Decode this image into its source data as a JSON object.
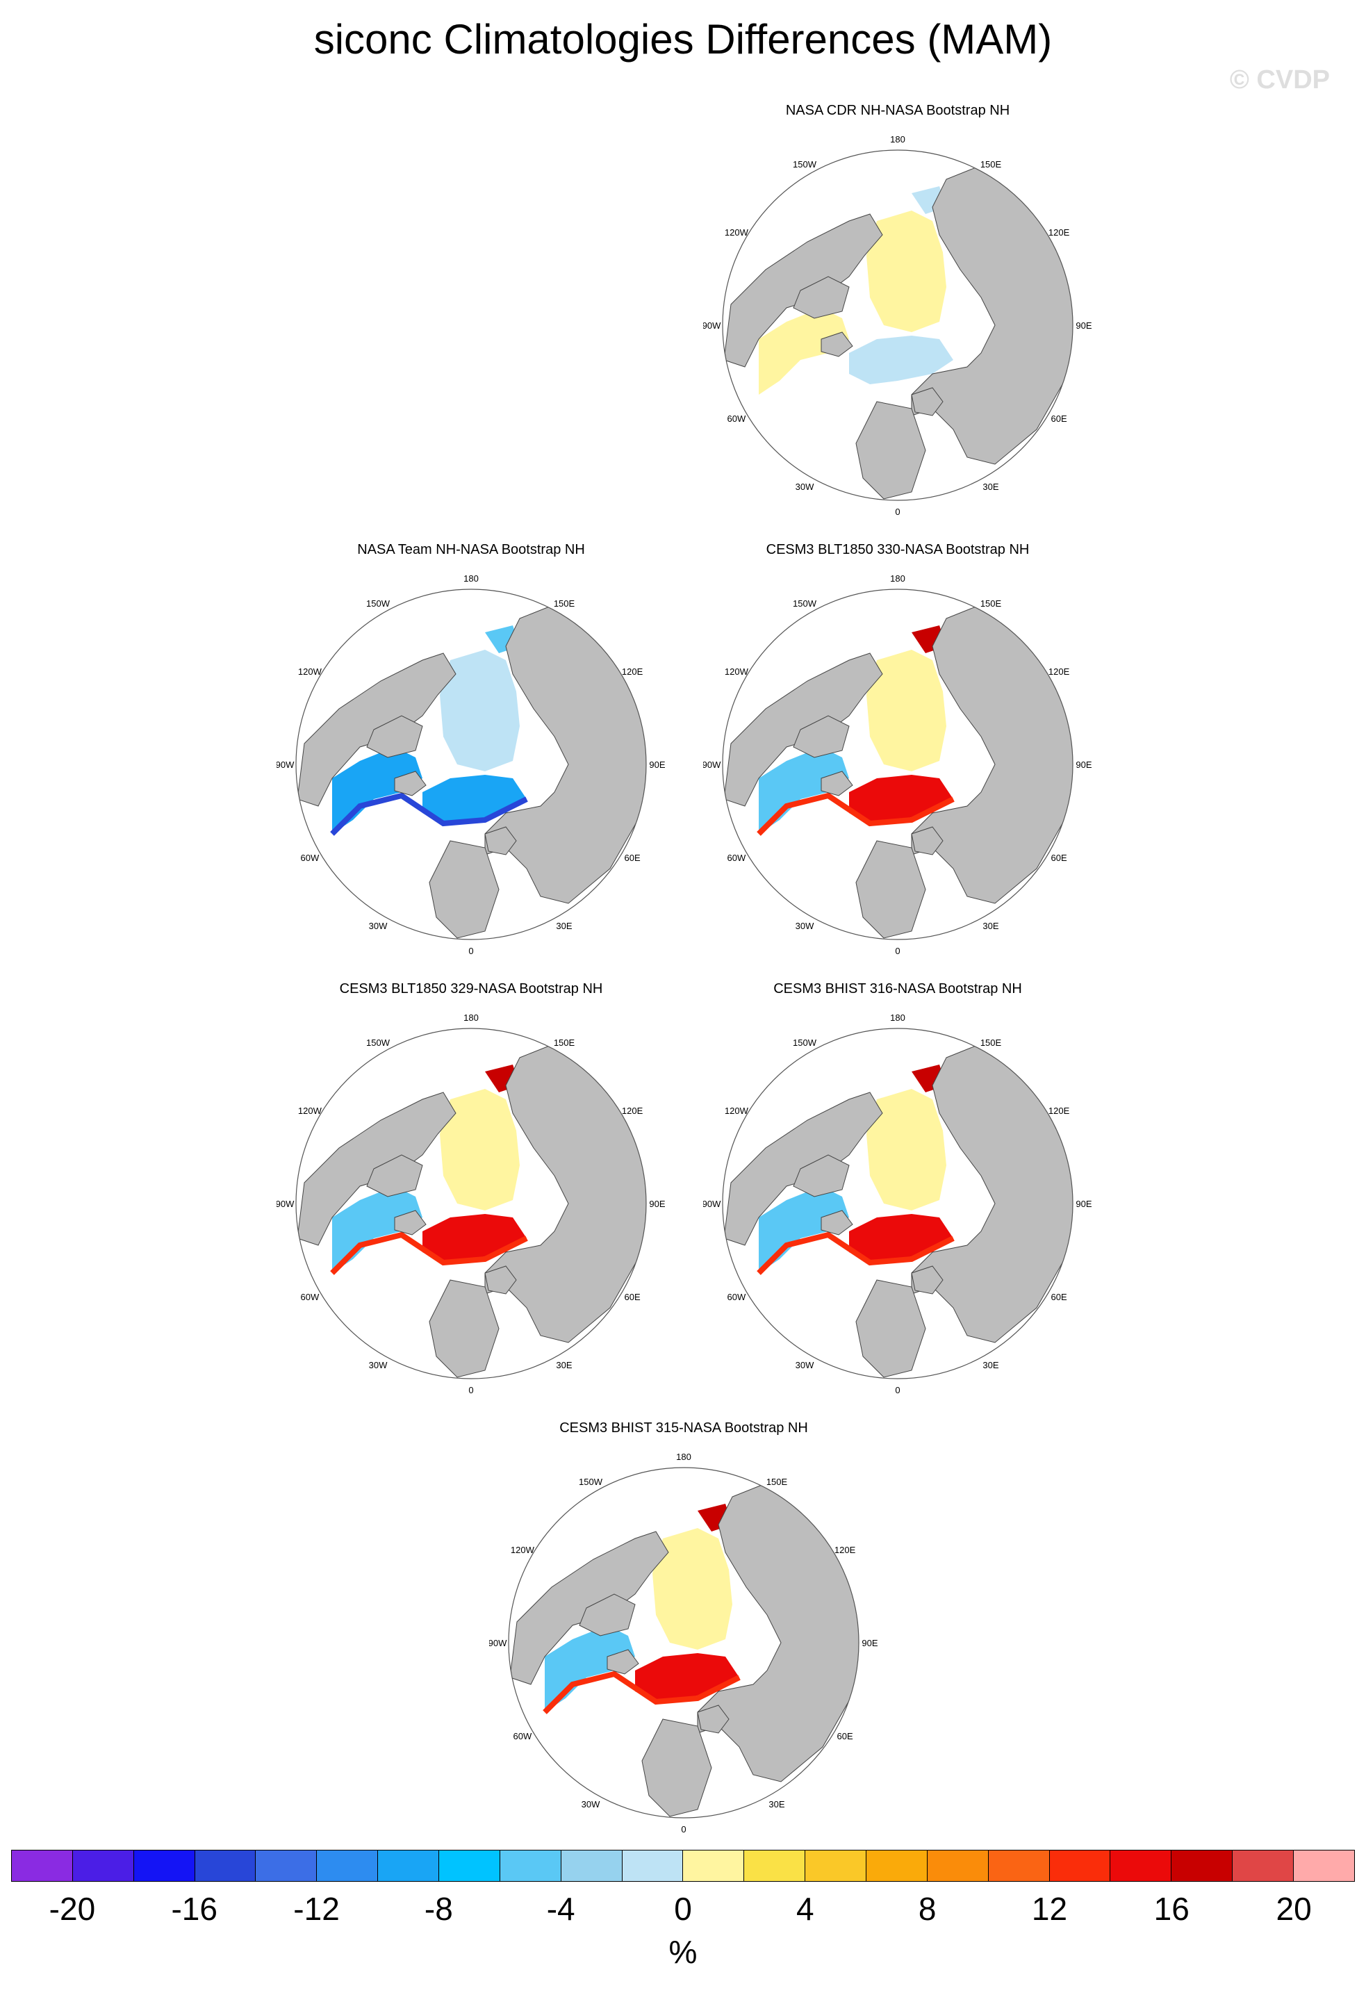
{
  "title": "siconc Climatologies Differences (MAM)",
  "watermark": "© CVDP",
  "panels": [
    {
      "title": "NASA CDR NH-NASA Bootstrap NH",
      "variant": "cdr"
    },
    {
      "title": "NASA Team NH-NASA Bootstrap NH",
      "variant": "team"
    },
    {
      "title": "CESM3 BLT1850 330-NASA Bootstrap NH",
      "variant": "model"
    },
    {
      "title": "CESM3 BLT1850 329-NASA Bootstrap NH",
      "variant": "model"
    },
    {
      "title": "CESM3 BHIST 316-NASA Bootstrap NH",
      "variant": "model"
    },
    {
      "title": "CESM3 BHIST 315-NASA Bootstrap NH",
      "variant": "model"
    }
  ],
  "longitude_labels": [
    "180",
    "150E",
    "120E",
    "90E",
    "60E",
    "30E",
    "0",
    "30W",
    "60W",
    "90W",
    "120W",
    "150W"
  ],
  "colorbar": {
    "colors": [
      "#8a2be2",
      "#4b1ee6",
      "#1414f5",
      "#2846d8",
      "#3c6ee6",
      "#2d8cf0",
      "#19a5f5",
      "#00c3ff",
      "#5ac8f5",
      "#96d2ee",
      "#bee3f5",
      "#fff5a0",
      "#fae146",
      "#fac828",
      "#faaa0a",
      "#fa8c0a",
      "#fa6414",
      "#fa2d0a",
      "#eb0a0a",
      "#c80000",
      "#e04646",
      "#ffaaaa"
    ],
    "tick_labels": [
      "-20",
      "-16",
      "-12",
      "-8",
      "-4",
      "0",
      "4",
      "8",
      "12",
      "16",
      "20"
    ],
    "unit": "%"
  },
  "colors": {
    "land": "#bdbdbd",
    "ocean": "#ffffff",
    "outline": "#444444"
  }
}
